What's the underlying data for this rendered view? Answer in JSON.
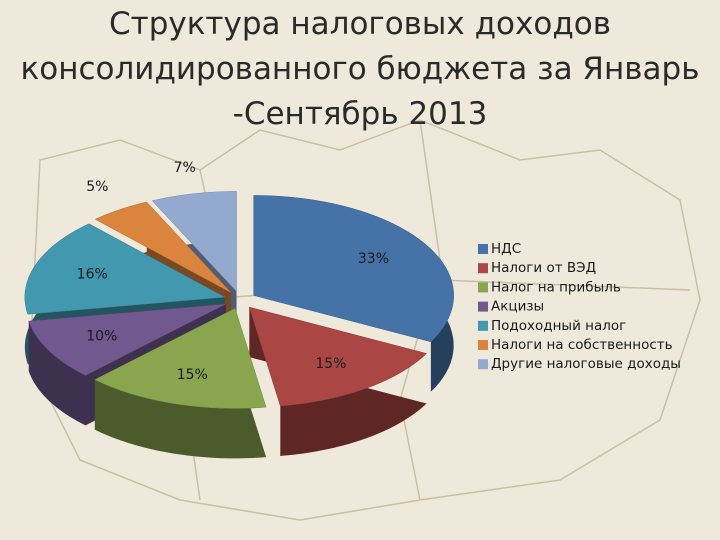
{
  "chart_data": {
    "type": "pie",
    "title": "Структура налоговых доходов консолидированного бюджета за Январь -Сентябрь 2013",
    "categories": [
      "НДС",
      "Налоги от ВЭД",
      "Налог на прибыль",
      "Акцизы",
      "Подоходный налог",
      "Налоги на собственность",
      "Другие налоговые доходы"
    ],
    "values": [
      33,
      15,
      15,
      10,
      16,
      5,
      7
    ],
    "value_labels": [
      "33%",
      "15%",
      "15%",
      "10%",
      "16%",
      "5%",
      "7%"
    ],
    "colors": [
      "#4572a7",
      "#aa4643",
      "#89a54e",
      "#71588f",
      "#4198af",
      "#db843d",
      "#93a9cf"
    ],
    "legend": "right"
  }
}
